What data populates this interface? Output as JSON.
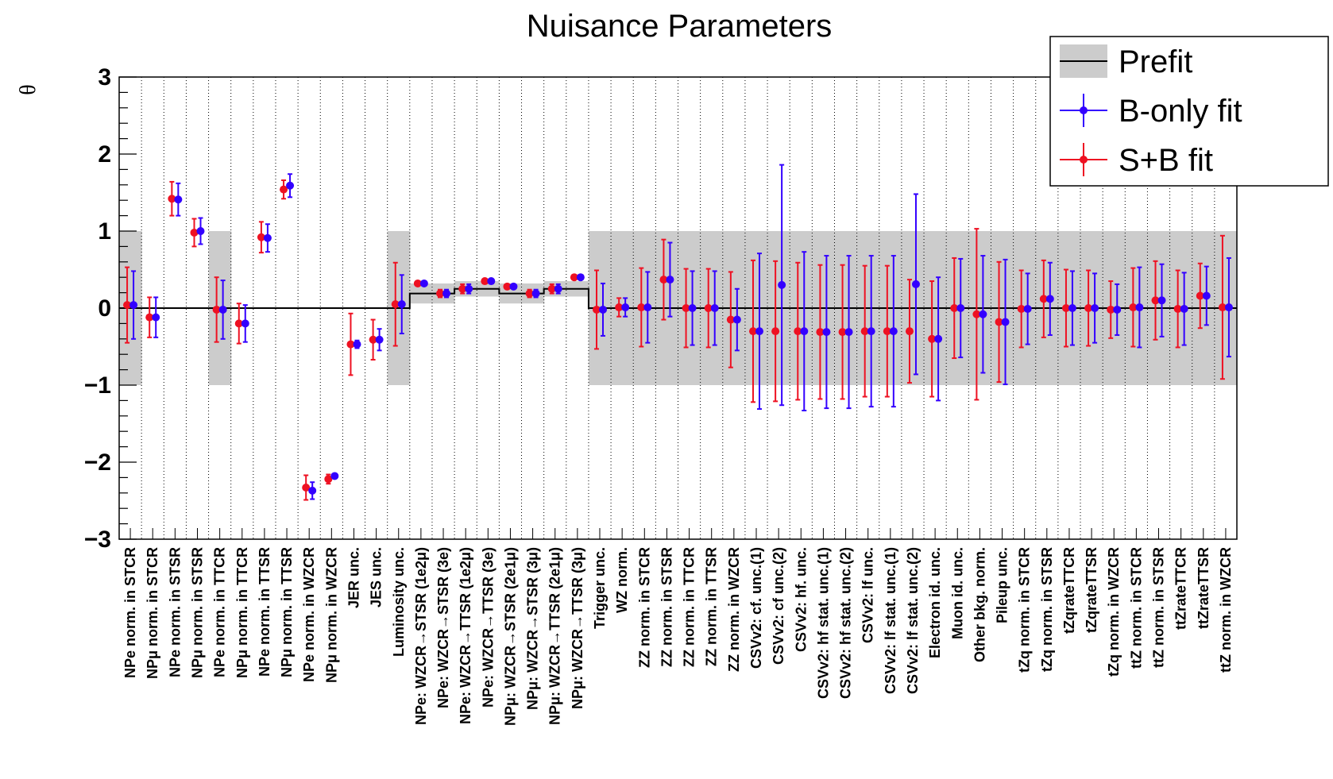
{
  "chart_data": {
    "type": "scatter",
    "title": "Nuisance Parameters",
    "ylabel": "θ",
    "xlabel": "",
    "ylim": [
      -3,
      3
    ],
    "yticks": [
      "3",
      "2",
      "1",
      "0",
      "−1",
      "−2",
      "−3"
    ],
    "grid": "vertical dotted lines at each category",
    "legend_position": "top-right",
    "legend": {
      "prefit": "Prefit",
      "bonly": "B-only fit",
      "splusb": "S+B fit"
    },
    "colors": {
      "prefit_band": "#cccccc",
      "prefit_line": "#000000",
      "bonly": "#3300ff",
      "splusb": "#ee1122"
    },
    "categories": [
      "NPe norm. in STCR",
      "NPμ norm. in STCR",
      "NPe norm. in STSR",
      "NPμ norm. in STSR",
      "NPe norm. in TTCR",
      "NPμ norm. in TTCR",
      "NPe norm. in TTSR",
      "NPμ norm. in TTSR",
      "NPe norm. in WZCR",
      "NPμ norm. in WZCR",
      "JER unc.",
      "JES unc.",
      "Luminosity unc.",
      "NPe: WZCR→STSR (1e2μ)",
      "NPe: WZCR→STSR (3e)",
      "NPe: WZCR→TTSR (1e2μ)",
      "NPe: WZCR→TTSR (3e)",
      "NPμ: WZCR→STSR (2e1μ)",
      "NPμ: WZCR→STSR (3μ)",
      "NPμ: WZCR→TTSR (2e1μ)",
      "NPμ: WZCR→TTSR (3μ)",
      "Trigger unc.",
      "WZ norm.",
      "ZZ norm. in STCR",
      "ZZ norm. in STSR",
      "ZZ norm. in TTCR",
      "ZZ norm. in TTSR",
      "ZZ norm. in WZCR",
      "CSVv2: cf. unc.(1)",
      "CSVv2: cf unc.(2)",
      "CSVv2: hf. unc.",
      "CSVv2: hf stat. unc.(1)",
      "CSVv2: hf stat. unc.(2)",
      "CSVv2: lf unc.",
      "CSVv2: lf stat. unc.(1)",
      "CSVv2: lf stat. unc.(2)",
      "Electron id. unc.",
      "Muon id. unc.",
      "Other bkg. norm.",
      "Pileup unc.",
      "tZq norm. in STCR",
      "tZq norm. in STSR",
      "tZqrateTTCR",
      "tZqrateTTSR",
      "tZq norm. in WZCR",
      "ttZ norm. in STCR",
      "ttZ norm. in STSR",
      "ttZrateTTCR",
      "ttZrateTTSR",
      "ttZ norm. in WZCR"
    ],
    "prefit": {
      "center": [
        0,
        0,
        0,
        0,
        0,
        0,
        0,
        0,
        0,
        0,
        0,
        0,
        0,
        0.19,
        0.19,
        0.25,
        0.25,
        0.19,
        0.19,
        0.25,
        0.25,
        0,
        0,
        0,
        0,
        0,
        0,
        0,
        0,
        0,
        0,
        0,
        0,
        0,
        0,
        0,
        0,
        0,
        0,
        0,
        0,
        0,
        0,
        0,
        0,
        0,
        0,
        0,
        0,
        0
      ],
      "halfwidth": [
        1,
        0,
        0,
        0,
        1,
        0,
        0,
        0,
        0,
        0,
        0,
        0,
        1,
        0.13,
        0.13,
        0.1,
        0.1,
        0.13,
        0.13,
        0.1,
        0.1,
        1,
        1,
        1,
        1,
        1,
        1,
        1,
        1,
        1,
        1,
        1,
        1,
        1,
        1,
        1,
        1,
        1,
        1,
        1,
        1,
        1,
        1,
        1,
        1,
        1,
        1,
        1,
        1,
        1
      ]
    },
    "series": [
      {
        "name": "B-only fit",
        "values": [
          0.04,
          -0.12,
          1.41,
          1.0,
          -0.02,
          -0.2,
          0.91,
          1.59,
          -2.37,
          -2.18,
          -0.47,
          -0.41,
          0.05,
          0.32,
          0.19,
          0.25,
          0.35,
          0.28,
          0.19,
          0.25,
          0.4,
          -0.02,
          0.01,
          0.01,
          0.37,
          0.0,
          0.0,
          -0.15,
          -0.3,
          0.3,
          -0.3,
          -0.31,
          -0.31,
          -0.3,
          -0.3,
          0.31,
          -0.4,
          0.0,
          -0.08,
          -0.18,
          -0.01,
          0.12,
          0.0,
          0.0,
          -0.02,
          0.01,
          0.1,
          -0.01,
          0.16,
          0.01
        ],
        "err": [
          0.44,
          0.26,
          0.21,
          0.17,
          0.38,
          0.24,
          0.18,
          0.15,
          0.11,
          0.03,
          0.05,
          0.14,
          0.38,
          0.02,
          0.05,
          0.06,
          0.02,
          0.02,
          0.05,
          0.06,
          0.02,
          0.34,
          0.12,
          0.46,
          0.48,
          0.48,
          0.48,
          0.4,
          1.01,
          1.56,
          1.03,
          0.99,
          0.99,
          0.98,
          0.98,
          1.17,
          0.8,
          0.64,
          0.76,
          0.81,
          0.46,
          0.47,
          0.48,
          0.45,
          0.33,
          0.52,
          0.47,
          0.47,
          0.38,
          0.64
        ]
      },
      {
        "name": "S+B fit",
        "values": [
          0.04,
          -0.12,
          1.42,
          0.98,
          -0.02,
          -0.2,
          0.92,
          1.54,
          -2.33,
          -2.22,
          -0.47,
          -0.41,
          0.05,
          0.32,
          0.19,
          0.25,
          0.35,
          0.28,
          0.19,
          0.25,
          0.4,
          -0.02,
          0.01,
          0.01,
          0.37,
          0.0,
          0.0,
          -0.15,
          -0.3,
          -0.3,
          -0.3,
          -0.31,
          -0.31,
          -0.3,
          -0.3,
          -0.3,
          -0.4,
          0.0,
          -0.08,
          -0.18,
          -0.01,
          0.12,
          0.0,
          0.0,
          -0.02,
          0.01,
          0.1,
          -0.01,
          0.16,
          0.01
        ],
        "err": [
          0.49,
          0.26,
          0.22,
          0.18,
          0.42,
          0.26,
          0.2,
          0.12,
          0.16,
          0.06,
          0.4,
          0.26,
          0.54,
          0.02,
          0.05,
          0.06,
          0.02,
          0.02,
          0.05,
          0.06,
          0.02,
          0.51,
          0.12,
          0.51,
          0.52,
          0.51,
          0.51,
          0.62,
          0.92,
          0.91,
          0.89,
          0.87,
          0.87,
          0.85,
          0.85,
          0.67,
          0.75,
          0.65,
          1.11,
          0.78,
          0.5,
          0.5,
          0.5,
          0.49,
          0.37,
          0.51,
          0.51,
          0.5,
          0.42,
          0.93
        ]
      }
    ]
  }
}
